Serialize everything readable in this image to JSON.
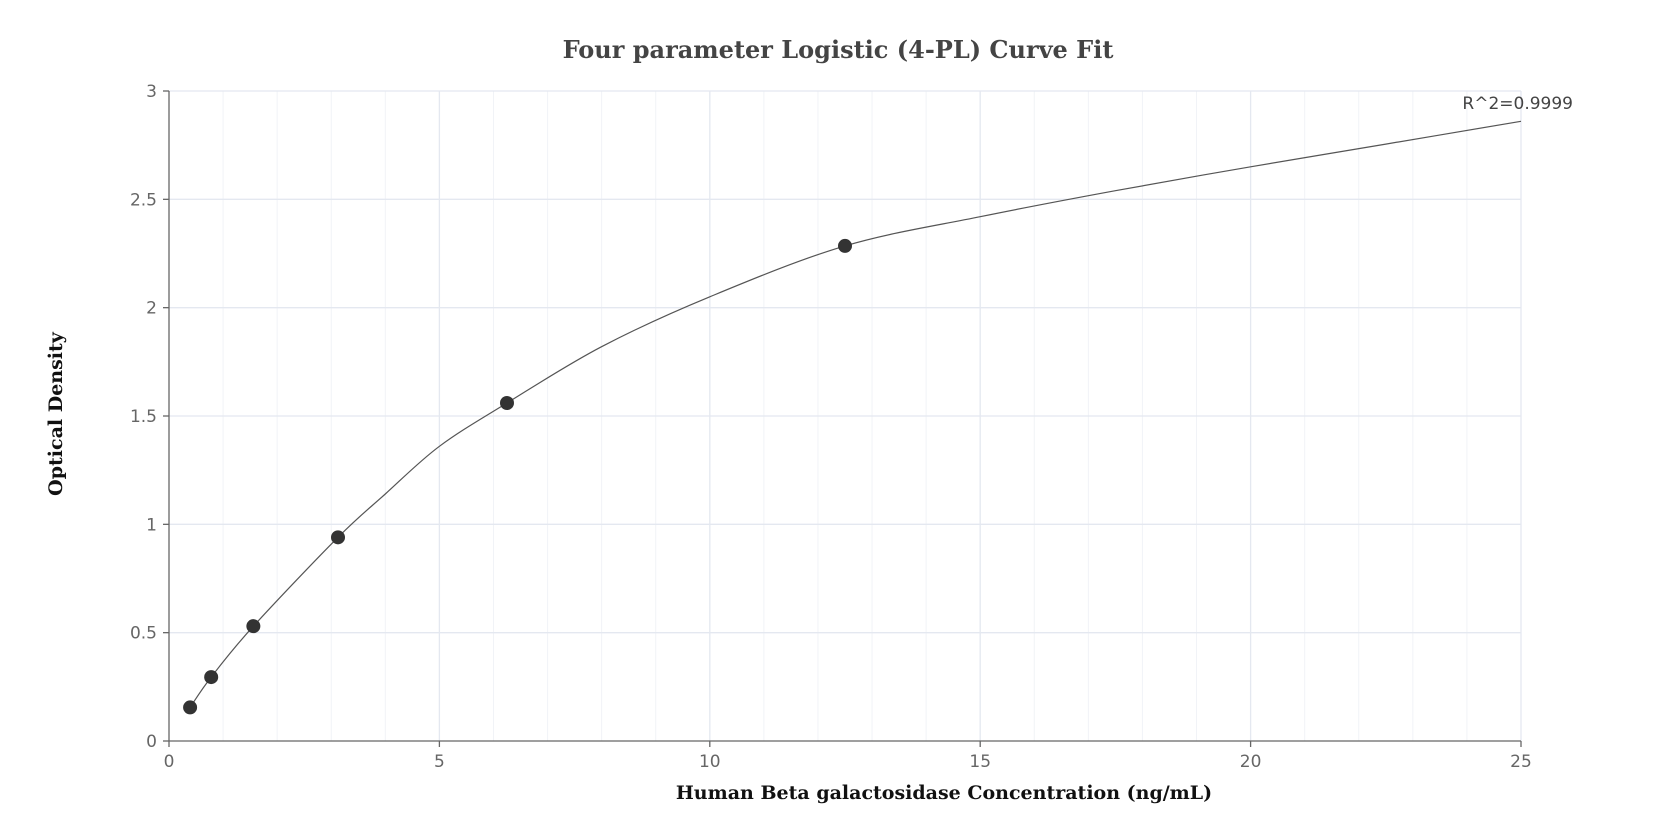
{
  "chart_data": {
    "type": "scatter",
    "title": "Four parameter Logistic (4-PL) Curve Fit",
    "xlabel": "Human Beta galactosidase Concentration (ng/mL)",
    "ylabel": "Optical Density",
    "xlim": [
      0,
      25
    ],
    "ylim": [
      0,
      3
    ],
    "x_ticks": [
      0,
      5,
      10,
      15,
      20,
      25
    ],
    "y_ticks": [
      0,
      0.5,
      1,
      1.5,
      2,
      2.5,
      3
    ],
    "grid": true,
    "points": {
      "x": [
        0.39,
        0.78,
        1.56,
        3.125,
        6.25,
        12.5
      ],
      "y": [
        0.155,
        0.295,
        0.53,
        0.94,
        1.56,
        2.285
      ]
    },
    "fit_curve": {
      "model": "4PL",
      "x": [
        0.39,
        0.78,
        1.56,
        3.125,
        4,
        5,
        6.25,
        8,
        10,
        12.5,
        15,
        17.5,
        20,
        22.5,
        25
      ],
      "y": [
        0.155,
        0.295,
        0.53,
        0.94,
        1.14,
        1.36,
        1.56,
        1.82,
        2.05,
        2.285,
        2.42,
        2.54,
        2.65,
        2.755,
        2.86
      ]
    },
    "annotation": "R^2=0.9999",
    "colors": {
      "point": "#333333",
      "curve": "#555555",
      "grid": "#e4e8f0",
      "axis": "#666666"
    }
  }
}
